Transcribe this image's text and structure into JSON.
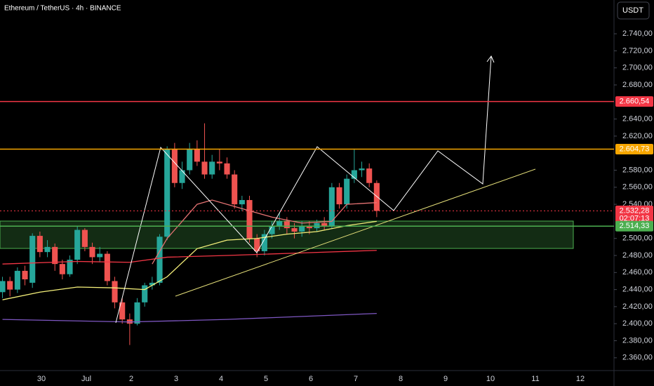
{
  "chart_data": {
    "type": "candlestick",
    "title": "Ethereum / TetherUS · 4h · BINANCE",
    "currency": "USDT",
    "up_color": "#26a69a",
    "down_color": "#ef5350",
    "x_labels": [
      "30",
      "Jul",
      "2",
      "3",
      "4",
      "5",
      "6",
      "7",
      "8",
      "9",
      "10",
      "11",
      "12"
    ],
    "open": [
      2437,
      2450,
      2440,
      2462,
      2448,
      2503,
      2484,
      2490,
      2470,
      2458,
      2475,
      2510,
      2490,
      2478,
      2482,
      2450,
      2425,
      2405,
      2400,
      2425,
      2445,
      2448,
      2502,
      2605,
      2565,
      2580,
      2605,
      2590,
      2575,
      2590,
      2588,
      2575,
      2540,
      2545,
      2500,
      2485,
      2505,
      2515,
      2520,
      2512,
      2508,
      2515,
      2512,
      2518,
      2515,
      2560,
      2540,
      2570,
      2580,
      2582,
      2565
    ],
    "high": [
      2455,
      2455,
      2466,
      2468,
      2506,
      2508,
      2498,
      2494,
      2475,
      2480,
      2514,
      2512,
      2495,
      2490,
      2485,
      2455,
      2430,
      2412,
      2430,
      2448,
      2455,
      2505,
      2608,
      2612,
      2590,
      2612,
      2615,
      2635,
      2598,
      2605,
      2595,
      2580,
      2550,
      2550,
      2505,
      2510,
      2520,
      2530,
      2525,
      2518,
      2520,
      2520,
      2522,
      2525,
      2565,
      2565,
      2575,
      2605,
      2590,
      2588,
      2568
    ],
    "low": [
      2430,
      2432,
      2436,
      2445,
      2442,
      2478,
      2478,
      2462,
      2452,
      2455,
      2470,
      2485,
      2470,
      2472,
      2445,
      2418,
      2400,
      2375,
      2398,
      2420,
      2440,
      2445,
      2498,
      2560,
      2558,
      2575,
      2585,
      2570,
      2570,
      2580,
      2570,
      2535,
      2532,
      2495,
      2478,
      2480,
      2500,
      2510,
      2505,
      2500,
      2502,
      2505,
      2508,
      2510,
      2512,
      2535,
      2535,
      2565,
      2572,
      2560,
      2525
    ],
    "close": [
      2450,
      2440,
      2462,
      2452,
      2503,
      2484,
      2490,
      2470,
      2458,
      2475,
      2510,
      2490,
      2478,
      2482,
      2450,
      2425,
      2405,
      2400,
      2425,
      2445,
      2448,
      2502,
      2605,
      2565,
      2580,
      2605,
      2590,
      2575,
      2590,
      2588,
      2575,
      2540,
      2545,
      2500,
      2485,
      2505,
      2515,
      2520,
      2512,
      2508,
      2515,
      2512,
      2518,
      2515,
      2560,
      2540,
      2570,
      2580,
      2582,
      2565,
      2532.28
    ],
    "indicators": [
      {
        "color": "#f5f07a",
        "x": [
          0,
          5,
          10,
          15,
          19,
          22,
          26,
          30,
          34,
          38,
          42,
          46,
          50
        ],
        "values": [
          2428,
          2437,
          2443,
          2442,
          2440,
          2455,
          2488,
          2498,
          2500,
          2505,
          2508,
          2515,
          2520
        ]
      },
      {
        "color": "#f23645",
        "x": [
          0,
          10,
          17,
          22,
          30,
          40,
          50
        ],
        "values": [
          2470,
          2473,
          2472,
          2478,
          2480,
          2483,
          2486
        ]
      },
      {
        "color": "#7e57c2",
        "x": [
          0,
          17,
          30,
          50
        ],
        "values": [
          2405,
          2402,
          2405,
          2412
        ]
      },
      {
        "color": "#e57373",
        "x": [
          20,
          22,
          24,
          26,
          28,
          32,
          36,
          40,
          44,
          46,
          50
        ],
        "values": [
          2470,
          2500,
          2520,
          2540,
          2545,
          2535,
          2525,
          2518,
          2520,
          2540,
          2542
        ]
      }
    ],
    "ylim": [
      2347.5,
      2779.6
    ],
    "yticks": [
      {
        "value": 2360,
        "label": "2.360,00"
      },
      {
        "value": 2380,
        "label": "2.380,00"
      },
      {
        "value": 2400,
        "label": "2.400,00"
      },
      {
        "value": 2420,
        "label": "2.420,00"
      },
      {
        "value": 2440,
        "label": "2.440,00"
      },
      {
        "value": 2460,
        "label": "2.460,00"
      },
      {
        "value": 2480,
        "label": "2.480,00"
      },
      {
        "value": 2500,
        "label": "2.500,00"
      },
      {
        "value": 2540,
        "label": "2.540,00"
      },
      {
        "value": 2560,
        "label": "2.560,00"
      },
      {
        "value": 2580,
        "label": "2.580,00"
      },
      {
        "value": 2620,
        "label": "2.620,00"
      },
      {
        "value": 2640,
        "label": "2.640,00"
      },
      {
        "value": 2680,
        "label": "2.680,00"
      },
      {
        "value": 2700,
        "label": "2.700,00"
      },
      {
        "value": 2720,
        "label": "2.720,00"
      },
      {
        "value": 2740,
        "label": "2.740,00"
      }
    ],
    "price_lines": [
      {
        "value": 2660.54,
        "label": "2.660,54",
        "color": "#f23645",
        "style": "solid"
      },
      {
        "value": 2604.73,
        "label": "2.604,73",
        "color": "#f7a600",
        "style": "solid"
      },
      {
        "value": 2532.28,
        "label": "2.532,28",
        "color": "#f23645",
        "style": "dotted",
        "countdown": "02:07:13"
      },
      {
        "value": 2514.33,
        "label": "2.514,33",
        "color": "#4caf50",
        "style": "solid"
      }
    ]
  }
}
